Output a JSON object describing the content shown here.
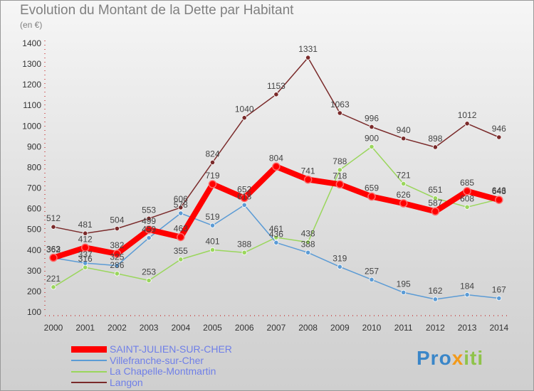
{
  "title": "Evolution du Montant de la Dette par Habitant",
  "unit": "(en €)",
  "logo": {
    "part1": "Pro",
    "part2": "x",
    "part3": "iti"
  },
  "chart_data": {
    "type": "line",
    "x": [
      "2000",
      "2001",
      "2002",
      "2003",
      "2004",
      "2005",
      "2006",
      "2007",
      "2008",
      "2009",
      "2010",
      "2011",
      "2012",
      "2013",
      "2014"
    ],
    "yticks": [
      100,
      200,
      300,
      400,
      500,
      600,
      700,
      800,
      900,
      1000,
      1100,
      1200,
      1300,
      1400
    ],
    "ylim": [
      100,
      1400
    ],
    "grid": false,
    "legend_position": "bottom-left",
    "series": [
      {
        "name": "SAINT-JULIEN-SUR-CHER",
        "color": "#ff0000",
        "width": 8,
        "values": [
          363,
          412,
          382,
          499,
          463,
          719,
          652,
          804,
          741,
          718,
          659,
          626,
          587,
          685,
          643
        ]
      },
      {
        "name": "Villefranche-sur-Cher",
        "color": "#5b9bd5",
        "width": 1.5,
        "values": [
          362,
          337,
          325,
          459,
          578,
          519,
          618,
          436,
          388,
          319,
          257,
          195,
          162,
          184,
          167
        ]
      },
      {
        "name": "La Chapelle-Montmartin",
        "color": "#9ad65c",
        "width": 1.5,
        "values": [
          221,
          316,
          286,
          253,
          355,
          401,
          388,
          461,
          438,
          788,
          900,
          721,
          651,
          608,
          646
        ]
      },
      {
        "name": "Langon",
        "color": "#7a2a2a",
        "width": 1.5,
        "values": [
          512,
          481,
          504,
          553,
          606,
          824,
          1040,
          1153,
          1331,
          1063,
          996,
          940,
          898,
          1012,
          946
        ]
      }
    ]
  }
}
